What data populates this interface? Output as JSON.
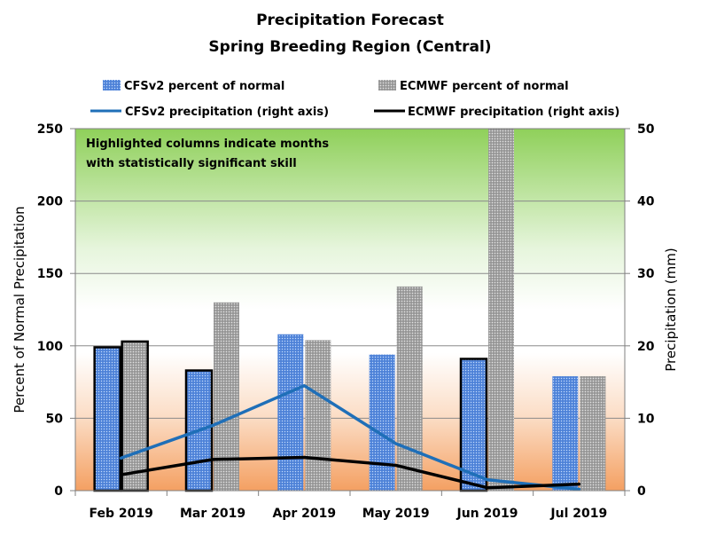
{
  "chart_data": {
    "type": "bar",
    "title": "Precipitation Forecast",
    "subtitle": "Spring Breeding Region (Central)",
    "categories": [
      "Feb 2019",
      "Mar 2019",
      "Apr 2019",
      "May 2019",
      "Jun 2019",
      "Jul 2019"
    ],
    "series": [
      {
        "name": "CFSv2 percent of normal",
        "kind": "bar",
        "axis": "left",
        "color": "#4f81d6",
        "values": [
          99,
          83,
          108,
          94,
          91,
          79
        ],
        "highlighted": [
          true,
          true,
          false,
          false,
          true,
          false
        ]
      },
      {
        "name": "ECMWF percent of normal",
        "kind": "bar",
        "axis": "left",
        "color": "#9e9e9e",
        "values": [
          103,
          130,
          104,
          141,
          250,
          79
        ],
        "highlighted": [
          true,
          false,
          false,
          false,
          false,
          false
        ]
      },
      {
        "name": "CFSv2 precipitation (right axis)",
        "kind": "line",
        "axis": "right",
        "color": "#1f6fb8",
        "values": [
          4.5,
          9.0,
          14.5,
          6.5,
          1.5,
          0.2
        ]
      },
      {
        "name": "ECMWF precipitation (right axis)",
        "kind": "line",
        "axis": "right",
        "color": "#000000",
        "values": [
          2.2,
          4.3,
          4.6,
          3.5,
          0.4,
          0.9
        ]
      }
    ],
    "ylabel": "Percent of Normal Precipitation",
    "ylim": [
      0,
      250
    ],
    "yticks": [
      0,
      50,
      100,
      150,
      200,
      250
    ],
    "y2label": "Precipitation (mm)",
    "y2lim": [
      0,
      50
    ],
    "y2ticks": [
      0,
      10,
      20,
      30,
      40,
      50
    ],
    "annotation": [
      "Highlighted columns indicate months",
      "with statistically significant  skill"
    ],
    "grid": true,
    "legend_position": "top"
  }
}
